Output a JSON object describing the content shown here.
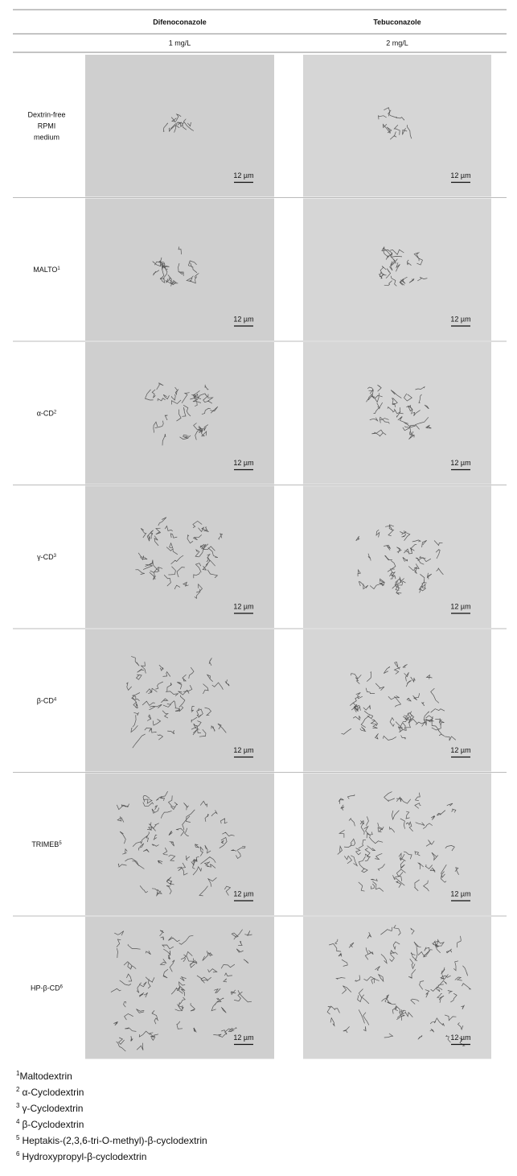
{
  "header": {
    "columns": [
      {
        "name": "Difenoconazole",
        "concentration": "1 mg/L"
      },
      {
        "name": "Tebuconazole",
        "concentration": "2 mg/L"
      }
    ]
  },
  "rows": [
    {
      "label": [
        "Dextrin-free",
        "RPMI",
        "medium"
      ],
      "sup": null,
      "scale_bars": [
        "12 µm",
        "12 µm"
      ]
    },
    {
      "label": [
        "MALTO"
      ],
      "sup": "1",
      "scale_bars": [
        "12 µm",
        "12 µm"
      ]
    },
    {
      "label": [
        "α-CD"
      ],
      "sup": "2",
      "scale_bars": [
        "12 µm",
        "12 µm"
      ]
    },
    {
      "label": [
        "γ-CD"
      ],
      "sup": "3",
      "scale_bars": [
        "12 µm",
        "12 µm"
      ]
    },
    {
      "label": [
        "β-CD"
      ],
      "sup": "4",
      "scale_bars": [
        "12 µm",
        "12 µm"
      ]
    },
    {
      "label": [
        "TRIMEB"
      ],
      "sup": "5",
      "scale_bars": [
        "12 µm",
        "12 µm"
      ]
    },
    {
      "label": [
        "HP-β-CD"
      ],
      "sup": "6",
      "scale_bars": [
        "12 µm",
        "12 µm"
      ]
    }
  ],
  "footnotes": [
    {
      "marker": "1",
      "text": "Maltodextrin"
    },
    {
      "marker": "2",
      "text": "α-Cyclodextrin"
    },
    {
      "marker": "3",
      "text": "γ-Cyclodextrin"
    },
    {
      "marker": "4",
      "text": "β-Cyclodextrin"
    },
    {
      "marker": "5",
      "text": "Heptakis-(2,3,6-tri-O-methyl)-β-cyclodextrin"
    },
    {
      "marker": "6",
      "text": "Hydroxypropyl-β-cyclodextrin"
    }
  ]
}
